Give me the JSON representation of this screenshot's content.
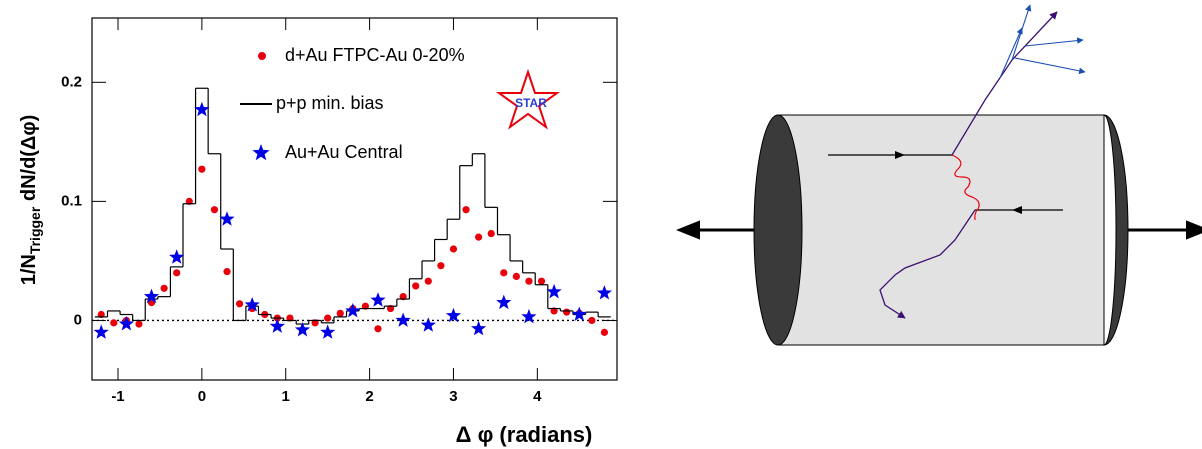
{
  "chart_data": {
    "type": "scatter",
    "xlabel": "Δ φ (radians)",
    "ylabel": {
      "main": "1/N",
      "sub": "Trigger",
      "rest": " dN/d(Δφ)"
    },
    "logo": "STAR",
    "xlim": [
      -1.31,
      4.95
    ],
    "ylim": [
      -0.05,
      0.254
    ],
    "xticks": [
      -1,
      0,
      1,
      2,
      3,
      4
    ],
    "yticks": [
      0,
      0.1,
      0.2
    ],
    "series": [
      {
        "name": "d+Au FTPC-Au 0-20%",
        "color": "#e8000b",
        "marker": "circle",
        "x": [
          -1.2,
          -1.05,
          -0.9,
          -0.75,
          -0.6,
          -0.45,
          -0.3,
          -0.15,
          0,
          0.15,
          0.3,
          0.45,
          0.6,
          0.75,
          0.9,
          1.05,
          1.2,
          1.35,
          1.5,
          1.65,
          1.8,
          1.95,
          2.1,
          2.25,
          2.4,
          2.55,
          2.7,
          2.85,
          3.0,
          3.15,
          3.3,
          3.45,
          3.6,
          3.75,
          3.9,
          4.05,
          4.2,
          4.35,
          4.5,
          4.65,
          4.8
        ],
        "values": [
          0.005,
          -0.002,
          0.0,
          -0.003,
          0.015,
          0.027,
          0.04,
          0.1,
          0.127,
          0.093,
          0.041,
          0.014,
          0.01,
          0.005,
          0.002,
          0.002,
          -0.008,
          -0.002,
          0.002,
          0.006,
          0.01,
          0.012,
          -0.007,
          0.01,
          0.02,
          0.029,
          0.033,
          0.046,
          0.06,
          0.093,
          0.07,
          0.073,
          0.04,
          0.037,
          0.033,
          0.033,
          0.008,
          0.007,
          0.006,
          0.0,
          -0.01
        ]
      },
      {
        "name": "p+p min. bias",
        "color": "#000000",
        "marker": "step",
        "x": [
          -1.2,
          -1.05,
          -0.9,
          -0.75,
          -0.6,
          -0.45,
          -0.3,
          -0.15,
          0,
          0.15,
          0.3,
          0.45,
          0.6,
          0.75,
          0.9,
          1.05,
          1.2,
          1.35,
          1.5,
          1.65,
          1.8,
          1.95,
          2.1,
          2.25,
          2.4,
          2.55,
          2.7,
          2.85,
          3.0,
          3.15,
          3.3,
          3.45,
          3.6,
          3.75,
          3.9,
          4.05,
          4.2,
          4.35,
          4.5,
          4.65,
          4.8
        ],
        "values": [
          0.003,
          0.008,
          0.005,
          0.0,
          0.018,
          0.02,
          0.045,
          0.098,
          0.195,
          0.14,
          0.06,
          0.0,
          0.012,
          0.005,
          0.002,
          0.0,
          -0.003,
          0.0,
          -0.002,
          0.003,
          0.008,
          0.01,
          0.01,
          0.012,
          0.018,
          0.035,
          0.05,
          0.068,
          0.085,
          0.13,
          0.14,
          0.095,
          0.072,
          0.05,
          0.04,
          0.03,
          0.01,
          0.008,
          0.005,
          0.007,
          0.003
        ]
      },
      {
        "name": "Au+Au Central",
        "color": "#0000e6",
        "marker": "star",
        "x": [
          -1.2,
          -0.9,
          -0.6,
          -0.3,
          0,
          0.3,
          0.6,
          0.9,
          1.2,
          1.5,
          1.8,
          2.1,
          2.4,
          2.7,
          3.0,
          3.3,
          3.6,
          3.9,
          4.2,
          4.5,
          4.8
        ],
        "values": [
          -0.01,
          -0.003,
          0.02,
          0.053,
          0.177,
          0.085,
          0.013,
          -0.005,
          -0.008,
          -0.01,
          0.008,
          0.017,
          0.0,
          -0.004,
          0.004,
          -0.007,
          0.015,
          0.003,
          0.024,
          0.005,
          0.023
        ]
      }
    ]
  }
}
